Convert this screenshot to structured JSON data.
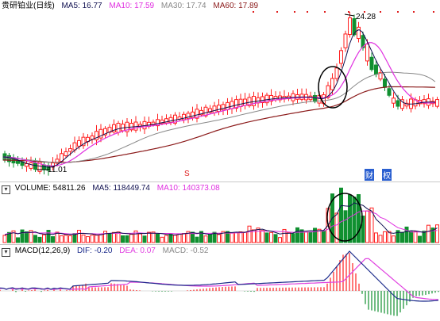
{
  "main": {
    "stock_name": "贵研铂业(日线)",
    "ma5_label": "MA5: 16.77",
    "ma10_label": "MA10: 17.59",
    "ma30_label": "MA30: 17.74",
    "ma60_label": "MA60: 17.89",
    "high_label": "24.28",
    "low_label": "11.01",
    "marker_s": "S",
    "marker_cai": "财",
    "marker_quan": "权"
  },
  "volume": {
    "title": "VOLUME: 54811.26",
    "ma5_label": "MA5: 118449.74",
    "ma10_label": "MA10: 140373.08"
  },
  "macd": {
    "title": "MACD(12,26,9)",
    "dif_label": "DIF: -0.20",
    "dea_label": "DEA: 0.07",
    "macd_label": "MACD: -0.52"
  },
  "colors": {
    "up": "#ff2020",
    "down": "#109030",
    "ma5": "#101050",
    "ma10": "#e030e0",
    "ma30": "#888888",
    "ma60": "#8b1a1a",
    "dif": "#1a2a8a",
    "dea": "#e040e0"
  }
}
